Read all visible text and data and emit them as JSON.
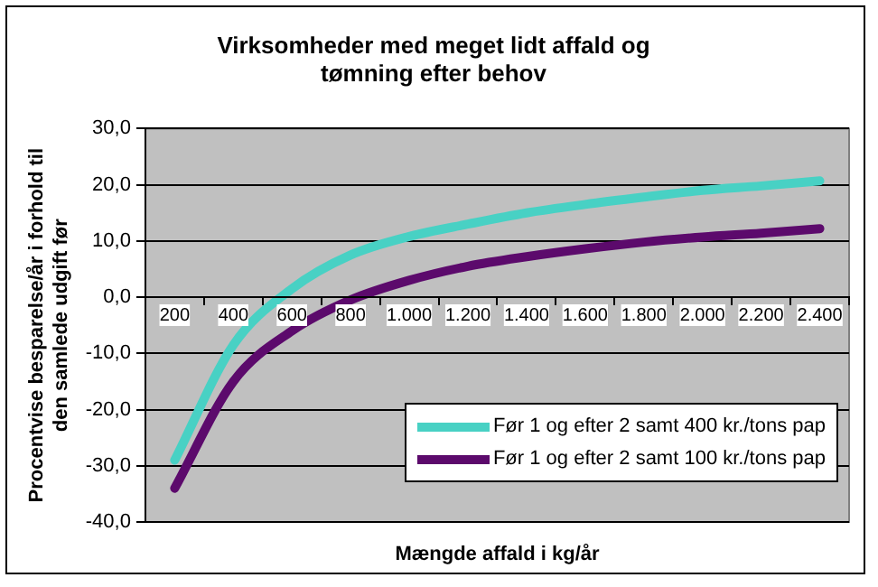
{
  "chart_data": {
    "type": "line",
    "title": "Virksomheder med meget lidt affald og tømning efter behov",
    "xlabel": "Mængde affald i kg/år",
    "ylabel": "Procentvise besparelse/år i forhold til den samlede udgift før",
    "categories": [
      "200",
      "400",
      "600",
      "800",
      "1.000",
      "1.200",
      "1.400",
      "1.600",
      "1.800",
      "2.000",
      "2.200",
      "2.400"
    ],
    "series": [
      {
        "name": "Før 1 og efter 2 samt 400 kr./tons pap",
        "color": "#48d1c4",
        "values": [
          -29,
          -8.5,
          1.5,
          7.5,
          10.8,
          13,
          15,
          16.5,
          17.8,
          19,
          19.8,
          20.7
        ]
      },
      {
        "name": "Før 1 og efter 2 samt 100 kr./tons pap",
        "color": "#5c0a6c",
        "values": [
          -34,
          -15,
          -6,
          -0.5,
          3,
          5.5,
          7.2,
          8.6,
          9.8,
          10.7,
          11.4,
          12.2
        ]
      }
    ],
    "ylim": [
      -40,
      30
    ],
    "yticks": [
      {
        "value": -40,
        "label": "-40,0"
      },
      {
        "value": -30,
        "label": "-30,0"
      },
      {
        "value": -20,
        "label": "-20,0"
      },
      {
        "value": -10,
        "label": "-10,0"
      },
      {
        "value": 0,
        "label": "0,0"
      },
      {
        "value": 10,
        "label": "10,0"
      },
      {
        "value": 20,
        "label": "20,0"
      },
      {
        "value": 30,
        "label": "30,0"
      }
    ],
    "grid": "y",
    "legend": "bottom right",
    "marker": "none",
    "line_style": "solid"
  }
}
